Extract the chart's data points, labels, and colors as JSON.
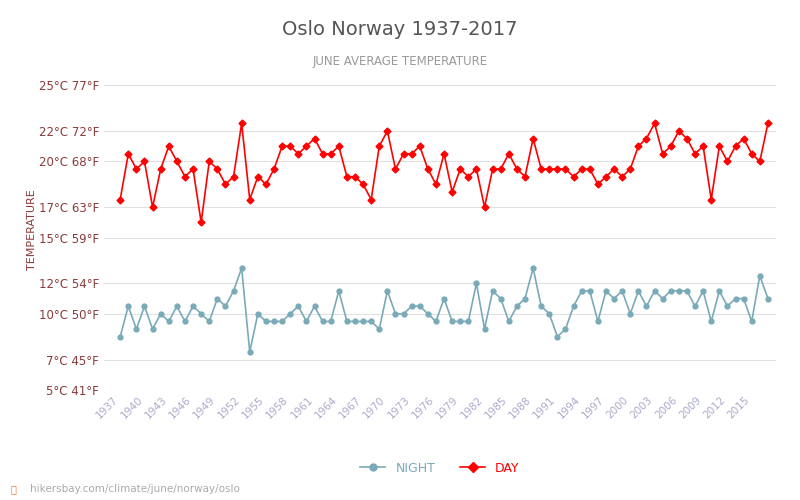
{
  "title": "Oslo Norway 1937-2017",
  "subtitle": "JUNE AVERAGE TEMPERATURE",
  "ylabel": "TEMPERATURE",
  "footer": "hikersbay.com/climate/june/norway/oslo",
  "ylim_celsius": [
    5,
    26
  ],
  "yticks_celsius": [
    5,
    7,
    10,
    12,
    15,
    17,
    20,
    22,
    25
  ],
  "yticks_fahrenheit": [
    41,
    45,
    50,
    54,
    59,
    63,
    68,
    72,
    77
  ],
  "years": [
    1937,
    1938,
    1939,
    1940,
    1941,
    1942,
    1943,
    1944,
    1945,
    1946,
    1947,
    1948,
    1949,
    1950,
    1951,
    1952,
    1953,
    1954,
    1955,
    1956,
    1957,
    1958,
    1959,
    1960,
    1961,
    1962,
    1963,
    1964,
    1965,
    1966,
    1967,
    1968,
    1969,
    1970,
    1971,
    1972,
    1973,
    1974,
    1975,
    1976,
    1977,
    1978,
    1979,
    1980,
    1981,
    1982,
    1983,
    1984,
    1985,
    1986,
    1987,
    1988,
    1989,
    1990,
    1991,
    1992,
    1993,
    1994,
    1995,
    1996,
    1997,
    1998,
    1999,
    2000,
    2001,
    2002,
    2003,
    2004,
    2005,
    2006,
    2007,
    2008,
    2009,
    2010,
    2011,
    2012,
    2013,
    2014,
    2015,
    2016,
    2017
  ],
  "day_temps": [
    17.5,
    20.5,
    19.5,
    20.0,
    17.0,
    19.5,
    21.0,
    20.0,
    19.0,
    19.5,
    16.0,
    20.0,
    19.5,
    18.5,
    19.0,
    22.5,
    17.5,
    19.0,
    18.5,
    19.5,
    21.0,
    21.0,
    20.5,
    21.0,
    21.5,
    20.5,
    20.5,
    21.0,
    19.0,
    19.0,
    18.5,
    17.5,
    21.0,
    22.0,
    19.5,
    20.5,
    20.5,
    21.0,
    19.5,
    18.5,
    20.5,
    18.0,
    19.5,
    19.0,
    19.5,
    17.0,
    19.5,
    19.5,
    20.5,
    19.5,
    19.0,
    21.5,
    19.5,
    19.5,
    19.5,
    19.5,
    19.0,
    19.5,
    19.5,
    18.5,
    19.0,
    19.5,
    19.0,
    19.5,
    21.0,
    21.5,
    22.5,
    20.5,
    21.0,
    22.0,
    21.5,
    20.5,
    21.0,
    17.5,
    21.0,
    20.0,
    21.0,
    21.5,
    20.5,
    20.0,
    22.5
  ],
  "night_temps": [
    8.5,
    10.5,
    9.0,
    10.5,
    9.0,
    10.0,
    9.5,
    10.5,
    9.5,
    10.5,
    10.0,
    9.5,
    11.0,
    10.5,
    11.5,
    13.0,
    7.5,
    10.0,
    9.5,
    9.5,
    9.5,
    10.0,
    10.5,
    9.5,
    10.5,
    9.5,
    9.5,
    11.5,
    9.5,
    9.5,
    9.5,
    9.5,
    9.0,
    11.5,
    10.0,
    10.0,
    10.5,
    10.5,
    10.0,
    9.5,
    11.0,
    9.5,
    9.5,
    9.5,
    12.0,
    9.0,
    11.5,
    11.0,
    9.5,
    10.5,
    11.0,
    13.0,
    10.5,
    10.0,
    8.5,
    9.0,
    10.5,
    11.5,
    11.5,
    9.5,
    11.5,
    11.0,
    11.5,
    10.0,
    11.5,
    10.5,
    11.5,
    11.0,
    11.5,
    11.5,
    11.5,
    10.5,
    11.5,
    9.5,
    11.5,
    10.5,
    11.0,
    11.0,
    9.5,
    12.5,
    11.0
  ],
  "day_color": "#ff0000",
  "night_color": "#7aaab8",
  "background_color": "#ffffff",
  "grid_color": "#e0e0e0",
  "title_color": "#555555",
  "subtitle_color": "#999999",
  "axis_label_color": "#8b3a3a",
  "tick_label_color": "#8b3a3a",
  "xtick_color": "#aaaacc",
  "legend_night_color": "#7aaab8",
  "legend_day_color": "#ff0000",
  "footer_color": "#aaaaaa"
}
